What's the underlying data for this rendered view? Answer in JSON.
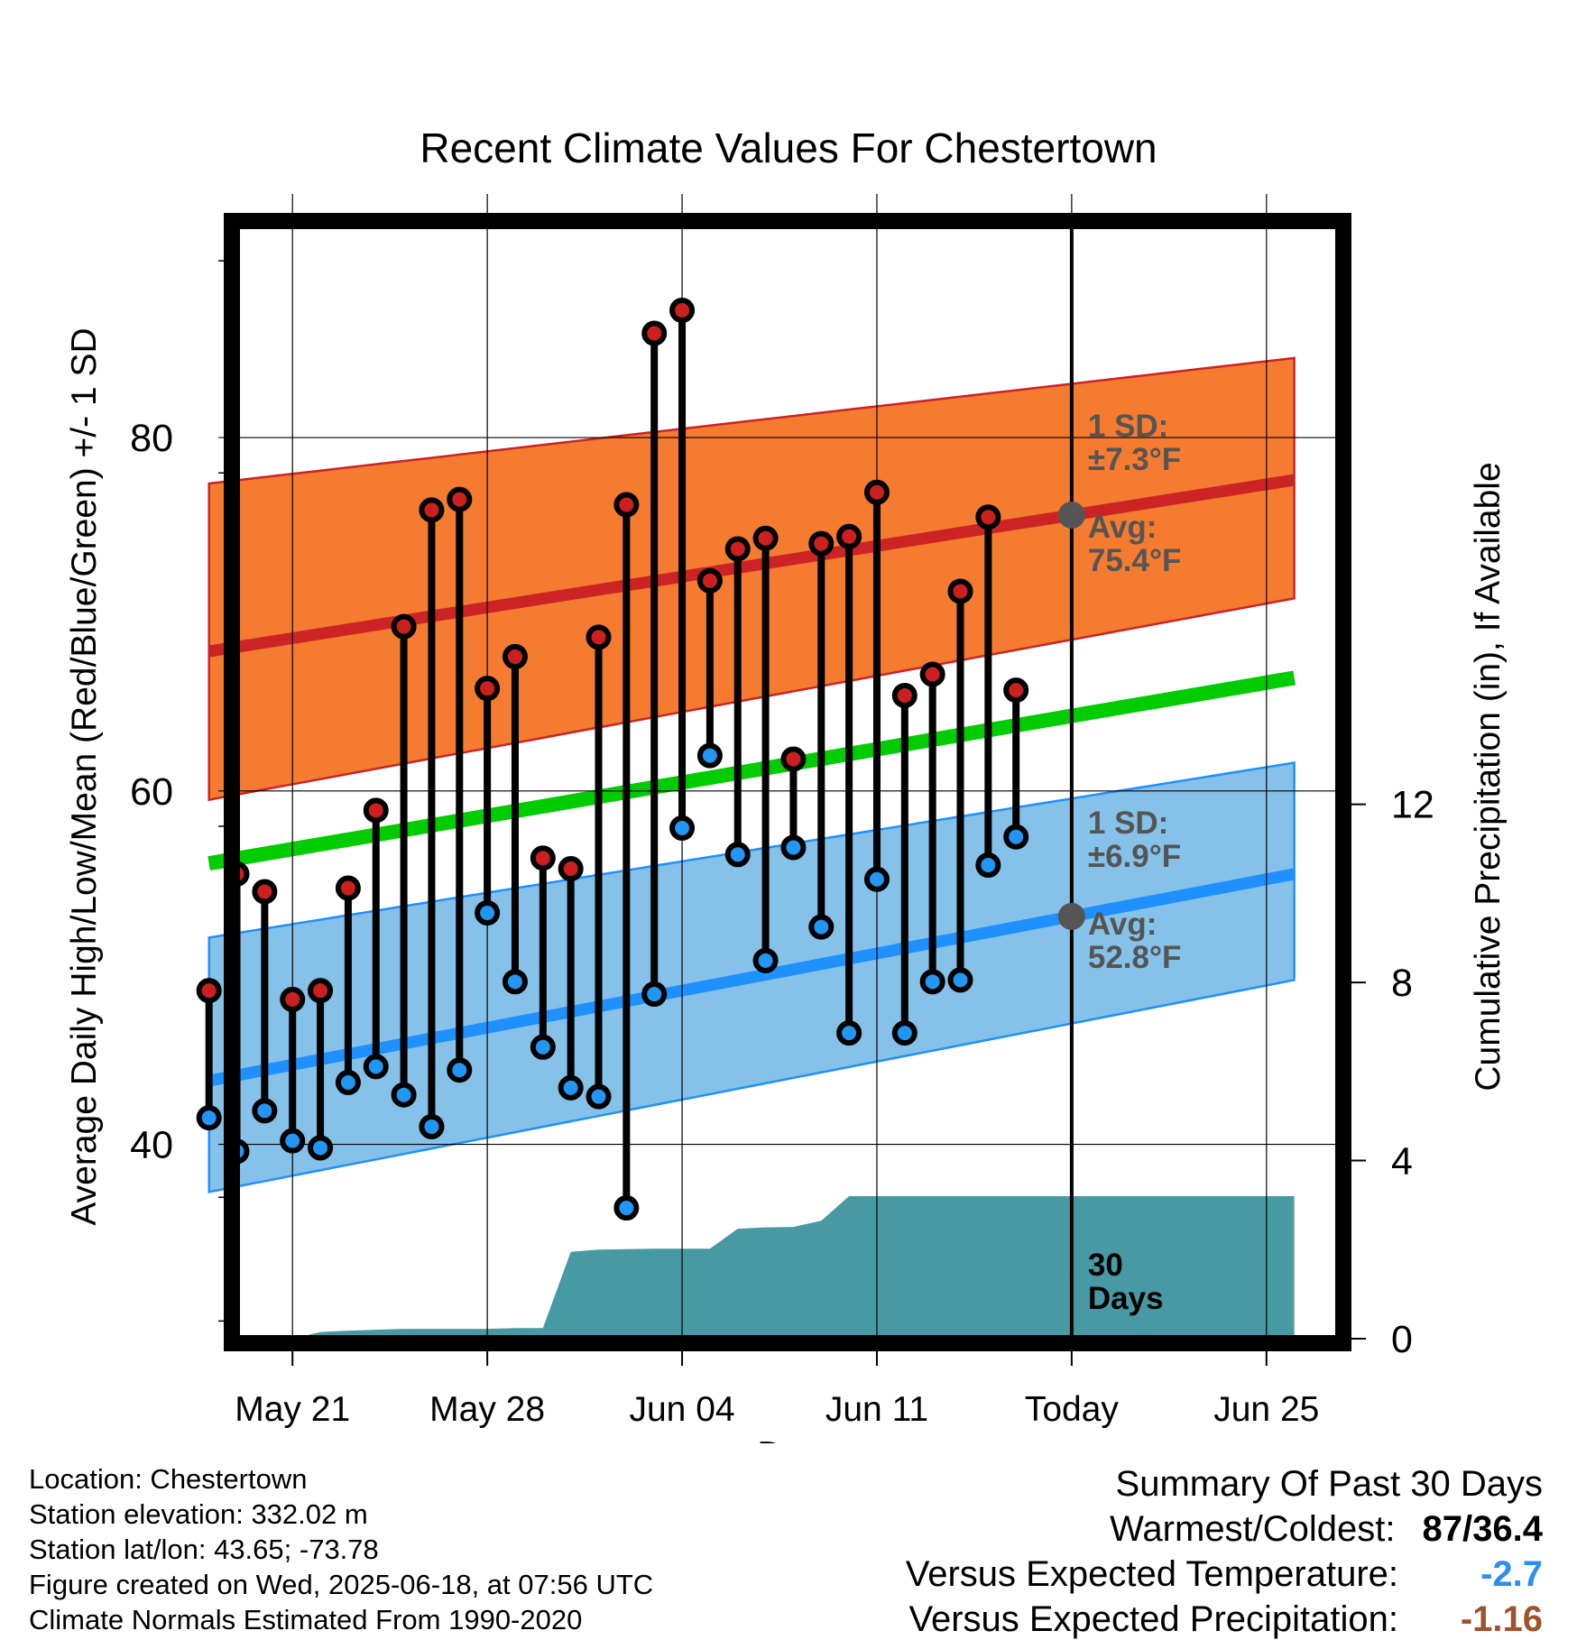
{
  "chart_data": {
    "type": "line",
    "title": "Recent Climate Values For Chestertown",
    "xlabel": "Day",
    "ylabel_left": "Average Daily High/Low/Mean (Red/Blue/Green) +/- 1 SD",
    "ylabel_right": "Cumulative Precipitation (in), If Available",
    "x_tick_labels": [
      "May 21",
      "May 28",
      "Jun 04",
      "Jun 11",
      "Today",
      "Jun 25"
    ],
    "x_tick_days": [
      2,
      9,
      16,
      23,
      30,
      37
    ],
    "xlim": [
      -1.8,
      39.6
    ],
    "ylim_left": [
      29,
      92
    ],
    "ylim_right": [
      0,
      25
    ],
    "y_left_ticks": [
      40,
      60,
      80
    ],
    "y_right_ticks": [
      0,
      4,
      8,
      12
    ],
    "grid": true,
    "today_day": 30,
    "today_label": [
      "30",
      "Days"
    ],
    "daily_days": [
      -1,
      0,
      1,
      2,
      3,
      4,
      5,
      6,
      7,
      8,
      9,
      10,
      11,
      12,
      13,
      14,
      15,
      16,
      17,
      18,
      19,
      20,
      21,
      22,
      23,
      24,
      25,
      26,
      27,
      28
    ],
    "daily_high": [
      48.7,
      55.3,
      54.3,
      48.2,
      48.7,
      54.5,
      58.9,
      69.3,
      75.9,
      76.5,
      65.8,
      67.6,
      56.2,
      55.6,
      68.7,
      76.2,
      85.9,
      87.2,
      71.9,
      73.7,
      74.3,
      61.8,
      74.0,
      74.4,
      76.9,
      65.4,
      66.6,
      71.3,
      75.5,
      65.7
    ],
    "daily_low": [
      41.5,
      39.6,
      41.9,
      40.2,
      39.8,
      43.5,
      44.4,
      42.8,
      41.0,
      44.2,
      53.1,
      49.2,
      45.5,
      43.2,
      42.7,
      36.4,
      48.5,
      57.9,
      62.0,
      56.4,
      50.4,
      56.8,
      52.3,
      46.3,
      55.0,
      46.3,
      49.2,
      49.3,
      55.8,
      57.4
    ],
    "normal_high": {
      "days": [
        -1,
        38
      ],
      "avg": [
        67.9,
        77.6
      ],
      "upper": [
        77.4,
        84.5
      ],
      "lower": [
        59.5,
        70.9
      ]
    },
    "normal_low": {
      "days": [
        -1,
        38
      ],
      "avg": [
        43.6,
        55.3
      ],
      "upper": [
        51.7,
        61.6
      ],
      "lower": [
        37.3,
        49.3
      ]
    },
    "normal_mean": {
      "days": [
        -1,
        38
      ],
      "avg": [
        55.9,
        66.4
      ]
    },
    "precip": {
      "days": [
        -1,
        2,
        3,
        4,
        5,
        6,
        7,
        8,
        9,
        10,
        11,
        12,
        13,
        14,
        15,
        16,
        17,
        18,
        19,
        20,
        21,
        22,
        23,
        24,
        25,
        26,
        27,
        28,
        29,
        30,
        31,
        32,
        33,
        34,
        35,
        36,
        37,
        38
      ],
      "values": [
        0,
        0,
        0.15,
        0.18,
        0.2,
        0.22,
        0.22,
        0.22,
        0.22,
        0.24,
        0.24,
        1.95,
        2.0,
        2.01,
        2.02,
        2.02,
        2.02,
        2.47,
        2.5,
        2.51,
        2.65,
        3.2,
        3.2,
        3.2,
        3.2,
        3.2,
        3.2,
        3.2,
        3.2,
        3.2,
        3.2,
        3.2,
        3.2,
        3.2,
        3.2,
        3.2,
        3.2,
        3.2
      ]
    },
    "annotations": {
      "high_sd": [
        "1 SD:",
        "±7.3°F"
      ],
      "high_avg": [
        "Avg:",
        "75.4°F"
      ],
      "low_sd": [
        "1 SD:",
        "±6.9°F"
      ],
      "low_avg": [
        "Avg:",
        "52.8°F"
      ]
    },
    "colors": {
      "high_band": "#f47b30",
      "high_line": "#cc2424",
      "low_band": "#85c1e8",
      "low_line": "#1e90ff",
      "mean_line": "#00cc00",
      "precip": "#4799a3",
      "high_dot": "#cc2020",
      "low_dot": "#2196f3",
      "annotation": "#555555"
    }
  },
  "footer": {
    "location": "Location: Chestertown",
    "elevation": "Station elevation: 332.02 m",
    "latlon": "Station lat/lon: 43.65; -73.78",
    "created": "Figure created on Wed, 2025-06-18, at 07:56 UTC",
    "normals": "Climate Normals Estimated From 1990-2020"
  },
  "summary": {
    "title": "Summary Of Past 30 Days",
    "warm_cold_label": "Warmest/Coldest:",
    "warm_cold_value": "87/36.4",
    "temp_label": "Versus Expected Temperature:",
    "temp_value": "-2.7",
    "temp_color": "#2e8ef0",
    "precip_label": "Versus Expected Precipitation:",
    "precip_value": "-1.16",
    "precip_color": "#a0522d"
  }
}
